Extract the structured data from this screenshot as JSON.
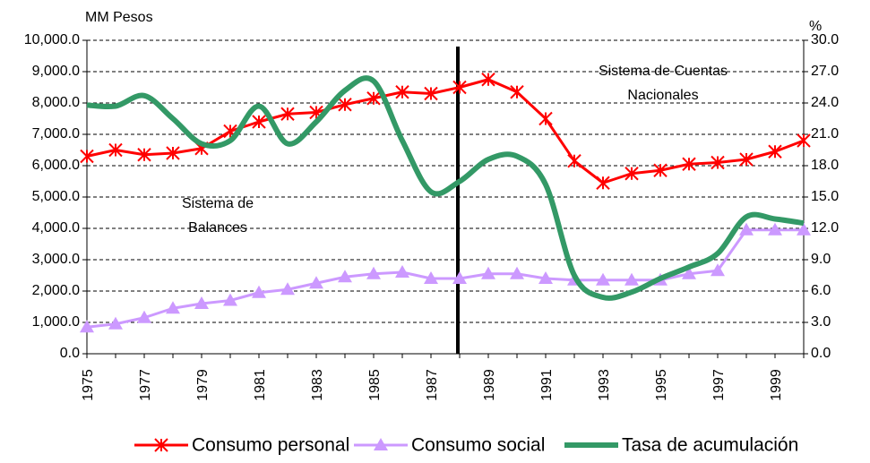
{
  "chart_data": {
    "type": "line",
    "y_label": "MM Pesos",
    "y2_label": "%",
    "annotations": [
      {
        "lines": [
          "Sistema de Cuentas",
          "Nacionales"
        ]
      },
      {
        "lines": [
          "Sistema de",
          "Balances"
        ]
      }
    ],
    "categories": [
      "1975",
      null,
      "1977",
      null,
      "1979",
      null,
      "1981",
      null,
      "1983",
      null,
      "1985",
      null,
      "1987",
      null,
      "1989",
      null,
      "1991",
      null,
      "1993",
      null,
      "1995",
      null,
      "1997",
      null,
      "1999",
      null
    ],
    "series": [
      {
        "name": "Consumo personal",
        "color": "#ff0000",
        "marker": "asterisk",
        "values": [
          6300,
          6500,
          6350,
          6400,
          6550,
          7100,
          7400,
          7650,
          7700,
          7950,
          8150,
          8350,
          8300,
          8500,
          8750,
          8350,
          7500,
          6150,
          5450,
          5750,
          5850,
          6050,
          6100,
          6200,
          6450,
          6800
        ]
      },
      {
        "name": "Consumo social",
        "color": "#cc99ff",
        "marker": "triangle",
        "values": [
          850,
          950,
          1150,
          1450,
          1600,
          1700,
          1950,
          2050,
          2250,
          2450,
          2550,
          2600,
          2400,
          2400,
          2550,
          2550,
          2400,
          2350,
          2350,
          2350,
          2350,
          2550,
          2650,
          3950,
          3950,
          3950
        ]
      },
      {
        "name": "Tasa de acumulación",
        "color": "#339966",
        "axis": "y2",
        "smooth": true,
        "values": [
          23.8,
          23.7,
          24.7,
          22.5,
          20.1,
          20.4,
          23.7,
          20.1,
          22.2,
          25.2,
          26.1,
          20.4,
          15.5,
          16.5,
          18.6,
          18.9,
          16.2,
          7.5,
          5.4,
          5.9,
          7.2,
          8.3,
          9.6,
          13.1,
          12.9,
          12.5
        ]
      }
    ],
    "ylim": [
      0,
      10000
    ],
    "yticks": [
      {
        "value": 0,
        "label": "0.0"
      },
      {
        "value": 1000,
        "label": "1,000.0"
      },
      {
        "value": 2000,
        "label": "2,000.0"
      },
      {
        "value": 3000,
        "label": "3,000.0"
      },
      {
        "value": 4000,
        "label": "4,000.0"
      },
      {
        "value": 5000,
        "label": "5,000.0"
      },
      {
        "value": 6000,
        "label": "6,000.0"
      },
      {
        "value": 7000,
        "label": "7,000.0"
      },
      {
        "value": 8000,
        "label": "8,000.0"
      },
      {
        "value": 9000,
        "label": "9,000.0"
      },
      {
        "value": 10000,
        "label": "10,000.0"
      }
    ],
    "y2lim": [
      0,
      30
    ],
    "y2ticks": [
      {
        "value": 0,
        "label": "0.0"
      },
      {
        "value": 3,
        "label": "3.0"
      },
      {
        "value": 6,
        "label": "6.0"
      },
      {
        "value": 9,
        "label": "9.0"
      },
      {
        "value": 12,
        "label": "12.0"
      },
      {
        "value": 15,
        "label": "15.0"
      },
      {
        "value": 18,
        "label": "18.0"
      },
      {
        "value": 21,
        "label": "21.0"
      },
      {
        "value": 24,
        "label": "24.0"
      },
      {
        "value": 27,
        "label": "27.0"
      },
      {
        "value": 30,
        "label": "30.0"
      }
    ],
    "grid": true,
    "legend": "bottom"
  }
}
